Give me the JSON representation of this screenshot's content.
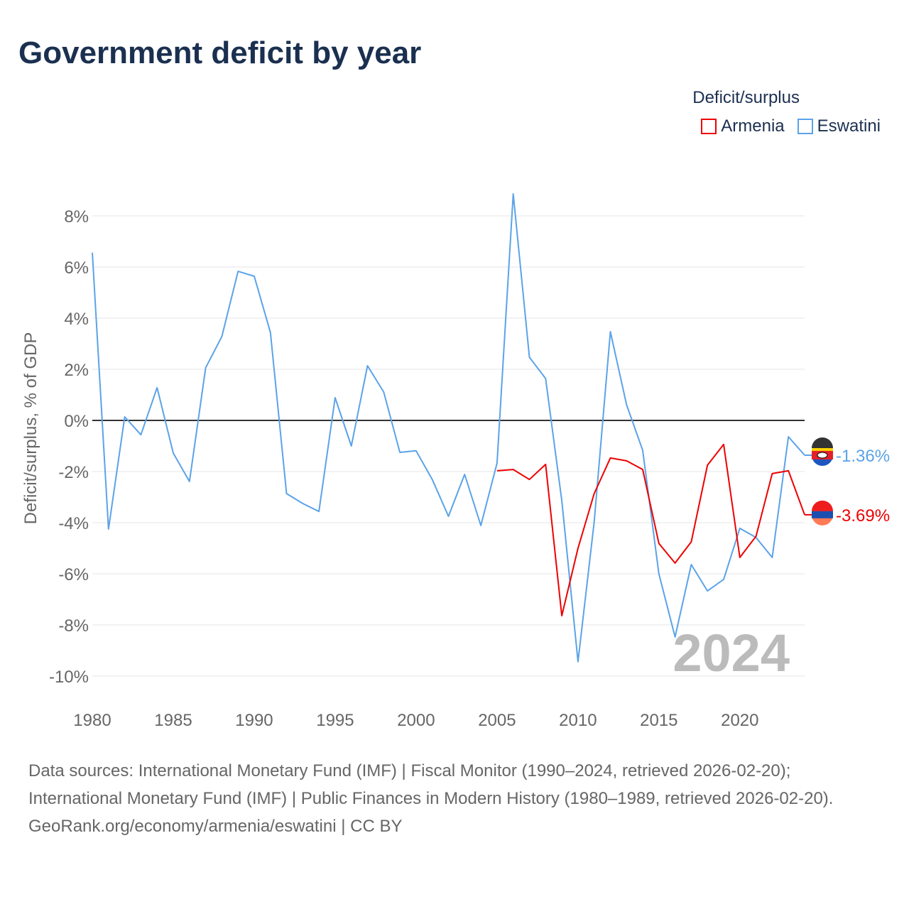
{
  "chart_data": {
    "type": "line",
    "title": "Government deficit by year",
    "ylabel": "Deficit/surplus, % of GDP",
    "xlabel": "",
    "xlim": [
      1980,
      2024
    ],
    "ylim": [
      -11,
      9
    ],
    "yticks": [
      -10,
      -8,
      -6,
      -4,
      -2,
      0,
      2,
      4,
      6,
      8
    ],
    "ytick_labels": [
      "-10%",
      "-8%",
      "-6%",
      "-4%",
      "-2%",
      "0%",
      "2%",
      "4%",
      "6%",
      "8%"
    ],
    "xticks": [
      1980,
      1985,
      1990,
      1995,
      2000,
      2005,
      2010,
      2015,
      2020
    ],
    "xtick_labels": [
      "1980",
      "1985",
      "1990",
      "1995",
      "2000",
      "2005",
      "2010",
      "2015",
      "2020"
    ],
    "grid": true,
    "legend_title": "Deficit/surplus",
    "legend_position": "top-right",
    "watermark_year": "2024",
    "series": [
      {
        "name": "Armenia",
        "color": "#ee0000",
        "end_label": "-3.69%",
        "x": [
          2005,
          2006,
          2007,
          2008,
          2009,
          2010,
          2011,
          2012,
          2013,
          2014,
          2015,
          2016,
          2017,
          2018,
          2019,
          2020,
          2021,
          2022,
          2023,
          2024
        ],
        "values": [
          -1.97,
          -1.92,
          -2.31,
          -1.72,
          -7.64,
          -5.0,
          -2.86,
          -1.47,
          -1.58,
          -1.92,
          -4.81,
          -5.58,
          -4.75,
          -1.75,
          -0.94,
          -5.36,
          -4.53,
          -2.08,
          -1.97,
          -3.69
        ]
      },
      {
        "name": "Eswatini",
        "color": "#5ba3e8",
        "end_label": "-1.36%",
        "x": [
          1980,
          1981,
          1982,
          1983,
          1984,
          1985,
          1986,
          1987,
          1988,
          1989,
          1990,
          1991,
          1992,
          1993,
          1994,
          1995,
          1996,
          1997,
          1998,
          1999,
          2000,
          2001,
          2002,
          2003,
          2004,
          2005,
          2006,
          2007,
          2008,
          2009,
          2010,
          2011,
          2012,
          2013,
          2014,
          2015,
          2016,
          2017,
          2018,
          2019,
          2020,
          2021,
          2022,
          2023,
          2024
        ],
        "values": [
          6.56,
          -4.25,
          0.14,
          -0.56,
          1.28,
          -1.28,
          -2.39,
          2.06,
          3.28,
          5.83,
          5.64,
          3.44,
          -2.86,
          -3.25,
          -3.56,
          0.89,
          -1.0,
          2.14,
          1.11,
          -1.25,
          -1.19,
          -2.31,
          -3.75,
          -2.11,
          -4.11,
          -1.67,
          8.86,
          2.47,
          1.64,
          -3.14,
          -9.44,
          -3.97,
          3.47,
          0.61,
          -1.17,
          -6.0,
          -8.47,
          -5.64,
          -6.67,
          -6.22,
          -4.22,
          -4.58,
          -5.36,
          -0.64,
          -1.36
        ]
      }
    ]
  },
  "sources": {
    "line1": "Data sources: International Monetary Fund (IMF) | Fiscal Monitor (1990–2024, retrieved 2026-02-20); International Monetary Fund (IMF) | Public Finances in Modern History (1980–1989, retrieved 2026-02-20).",
    "line2": "GeoRank.org/economy/armenia/eswatini | CC BY"
  }
}
